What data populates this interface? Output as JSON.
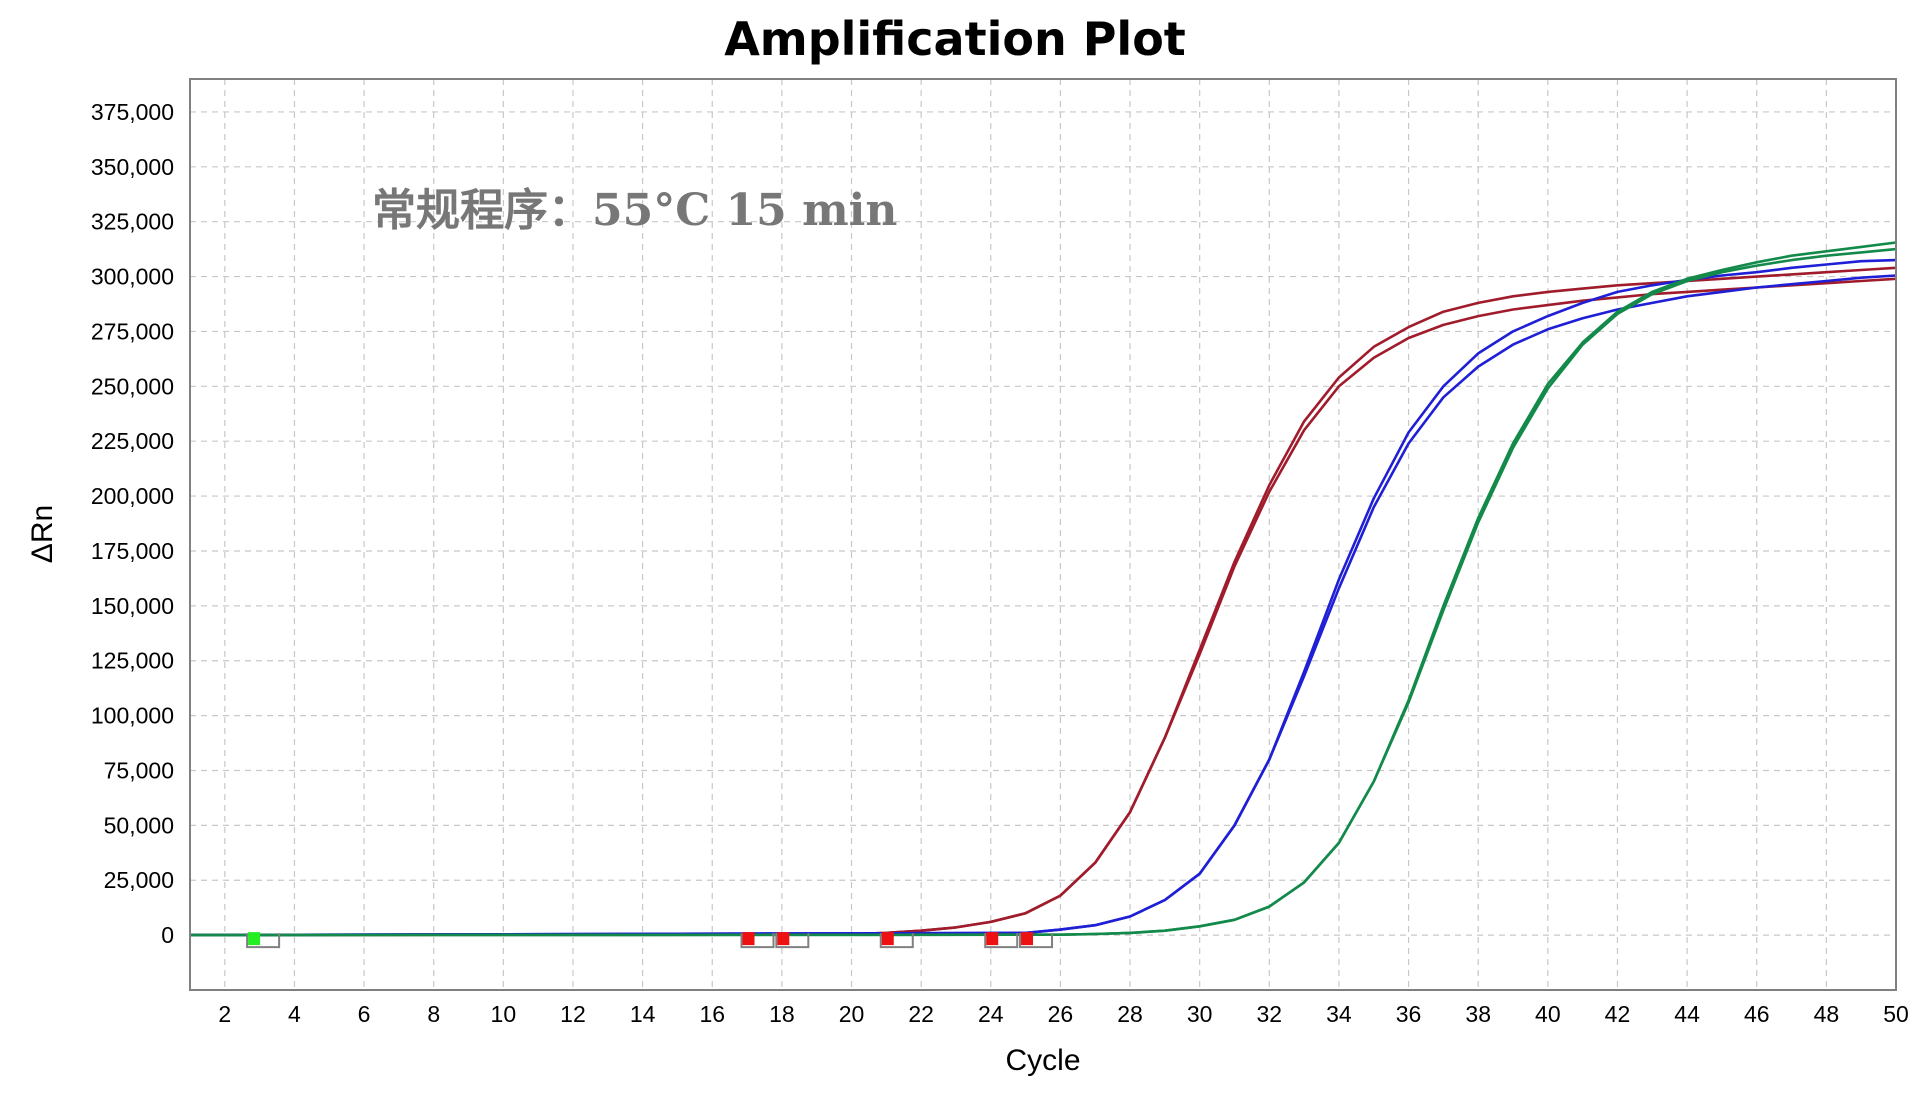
{
  "chart_data": {
    "type": "line",
    "title": "Amplification Plot",
    "xlabel": "Cycle",
    "ylabel": "ΔRn",
    "annotation": "常规程序：55°C 15 min",
    "xlim": [
      1,
      50
    ],
    "ylim": [
      -25000,
      390000
    ],
    "xticks": [
      2,
      4,
      6,
      8,
      10,
      12,
      14,
      16,
      18,
      20,
      22,
      24,
      26,
      28,
      30,
      32,
      34,
      36,
      38,
      40,
      42,
      44,
      46,
      48,
      50
    ],
    "yticks": [
      0,
      25000,
      50000,
      75000,
      100000,
      125000,
      150000,
      175000,
      200000,
      225000,
      250000,
      275000,
      300000,
      325000,
      350000,
      375000
    ],
    "ytick_labels": [
      "0",
      "25,000",
      "50,000",
      "75,000",
      "100,000",
      "125,000",
      "150,000",
      "175,000",
      "200,000",
      "225,000",
      "250,000",
      "275,000",
      "300,000",
      "325,000",
      "350,000",
      "375,000"
    ],
    "grid": true,
    "series": [
      {
        "color": "#a01c2c",
        "x": [
          1,
          20,
          21,
          22,
          23,
          24,
          25,
          26,
          27,
          28,
          29,
          30,
          31,
          32,
          33,
          34,
          35,
          36,
          37,
          38,
          39,
          40,
          41,
          42,
          43,
          44,
          45,
          46,
          47,
          48,
          49,
          50
        ],
        "y": [
          0,
          500,
          1000,
          2000,
          3500,
          6000,
          10000,
          18000,
          33000,
          56000,
          90000,
          130000,
          170000,
          205000,
          234000,
          254000,
          268000,
          277000,
          284000,
          288000,
          291000,
          293000,
          294500,
          296000,
          297000,
          298000,
          299000,
          300000,
          301000,
          302000,
          303000,
          304000
        ]
      },
      {
        "color": "#a01c2c",
        "x": [
          1,
          20,
          21,
          22,
          23,
          24,
          25,
          26,
          27,
          28,
          29,
          30,
          31,
          32,
          33,
          34,
          35,
          36,
          37,
          38,
          39,
          40,
          41,
          42,
          43,
          44,
          45,
          46,
          47,
          48,
          49,
          50
        ],
        "y": [
          0,
          500,
          1000,
          2000,
          3500,
          6000,
          10000,
          18000,
          33000,
          56000,
          90000,
          128000,
          168000,
          202000,
          230000,
          250000,
          263000,
          272000,
          278000,
          282000,
          285000,
          287000,
          289000,
          290500,
          292000,
          293000,
          294000,
          295000,
          296000,
          297000,
          298000,
          299000
        ]
      },
      {
        "color": "#1f1fd6",
        "x": [
          1,
          25,
          26,
          27,
          28,
          29,
          30,
          31,
          32,
          33,
          34,
          35,
          36,
          37,
          38,
          39,
          40,
          41,
          42,
          43,
          44,
          45,
          46,
          47,
          48,
          49,
          50
        ],
        "y": [
          0,
          1000,
          2500,
          4500,
          8500,
          16000,
          28000,
          50000,
          80000,
          120000,
          162000,
          199000,
          229000,
          250000,
          265000,
          275000,
          282000,
          288000,
          293000,
          296000,
          298500,
          300500,
          302000,
          304000,
          305500,
          307000,
          307500
        ]
      },
      {
        "color": "#1f1fd6",
        "x": [
          1,
          25,
          26,
          27,
          28,
          29,
          30,
          31,
          32,
          33,
          34,
          35,
          36,
          37,
          38,
          39,
          40,
          41,
          42,
          43,
          44,
          45,
          46,
          47,
          48,
          49,
          50
        ],
        "y": [
          0,
          1000,
          2500,
          4500,
          8500,
          16000,
          28000,
          50000,
          80000,
          118000,
          158000,
          195000,
          224000,
          245000,
          259000,
          269000,
          276000,
          281000,
          285000,
          288000,
          291000,
          293000,
          295000,
          296500,
          298000,
          299500,
          300500
        ]
      },
      {
        "color": "#138a4a",
        "x": [
          1,
          26,
          27,
          28,
          29,
          30,
          31,
          32,
          33,
          34,
          35,
          36,
          37,
          38,
          39,
          40,
          41,
          42,
          43,
          44,
          45,
          46,
          47,
          48,
          49,
          50
        ],
        "y": [
          0,
          200,
          500,
          1000,
          2000,
          4000,
          7000,
          13000,
          24000,
          42000,
          70000,
          107000,
          150000,
          190000,
          224000,
          251000,
          270000,
          284000,
          293000,
          299000,
          303000,
          306500,
          309500,
          311500,
          313500,
          315500
        ]
      },
      {
        "color": "#138a4a",
        "x": [
          1,
          26,
          27,
          28,
          29,
          30,
          31,
          32,
          33,
          34,
          35,
          36,
          37,
          38,
          39,
          40,
          41,
          42,
          43,
          44,
          45,
          46,
          47,
          48,
          49,
          50
        ],
        "y": [
          0,
          200,
          500,
          1000,
          2000,
          4000,
          7000,
          13000,
          24000,
          42000,
          70000,
          106000,
          148000,
          188000,
          222000,
          249000,
          269000,
          283000,
          292000,
          298000,
          302000,
          305000,
          307500,
          309500,
          311000,
          312500
        ]
      }
    ],
    "markers": [
      {
        "x": 3.1,
        "color": "#22ee22"
      },
      {
        "x": 17.3,
        "color": "#ee1111"
      },
      {
        "x": 18.3,
        "color": "#ee1111"
      },
      {
        "x": 21.3,
        "color": "#ee1111"
      },
      {
        "x": 24.3,
        "color": "#ee1111"
      },
      {
        "x": 25.3,
        "color": "#ee1111"
      }
    ]
  }
}
